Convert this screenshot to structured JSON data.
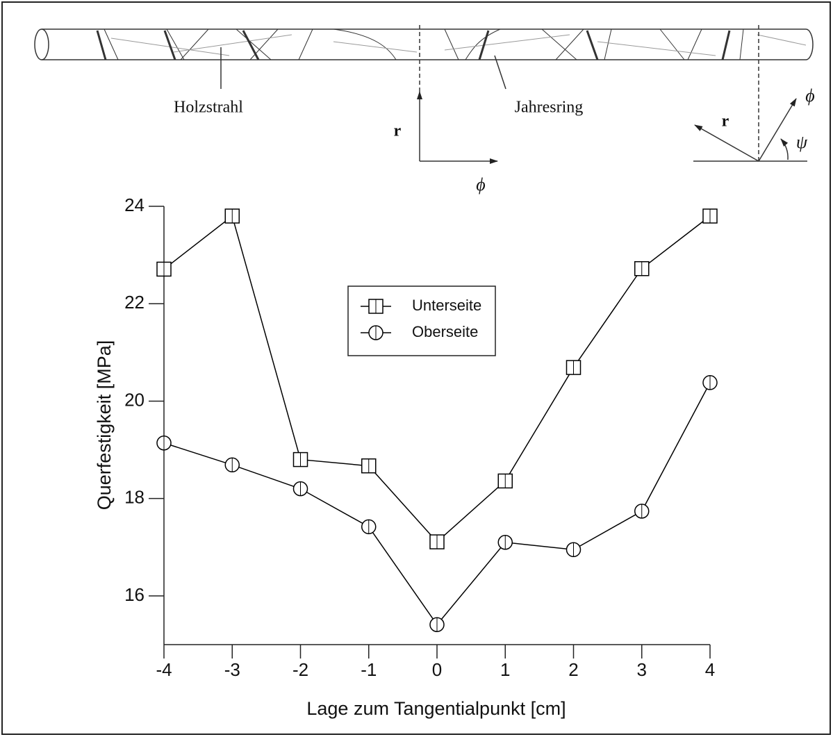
{
  "chart_data": {
    "type": "line",
    "annotations": [
      "Holzstrahl",
      "Jahresring",
      "r",
      "ϕ",
      "r",
      "ϕ",
      "ψ"
    ],
    "x_label": "Lage zum Tangentialpunkt [cm]",
    "y_label": "Querfestigkeit [MPa]",
    "x": [
      -4,
      -3,
      -2,
      -1,
      0,
      1,
      2,
      3,
      4
    ],
    "series": [
      {
        "name": "Unterseite",
        "color": "#000000",
        "marker": "square",
        "values": [
          22.71,
          23.8,
          18.8,
          18.67,
          17.11,
          18.36,
          20.69,
          22.72,
          23.8
        ]
      },
      {
        "name": "Oberseite",
        "color": "#000000",
        "marker": "circle",
        "values": [
          19.14,
          18.69,
          18.2,
          17.42,
          15.41,
          17.1,
          16.95,
          17.74,
          20.38
        ]
      }
    ],
    "xlim": [
      -4,
      4
    ],
    "xticks": [
      -4,
      -3,
      -2,
      -1,
      0,
      1,
      2,
      3,
      4
    ],
    "ylim": [
      15,
      24
    ],
    "yticks": [
      16,
      18,
      20,
      22,
      24
    ],
    "legend": "upper center",
    "grid": false
  }
}
